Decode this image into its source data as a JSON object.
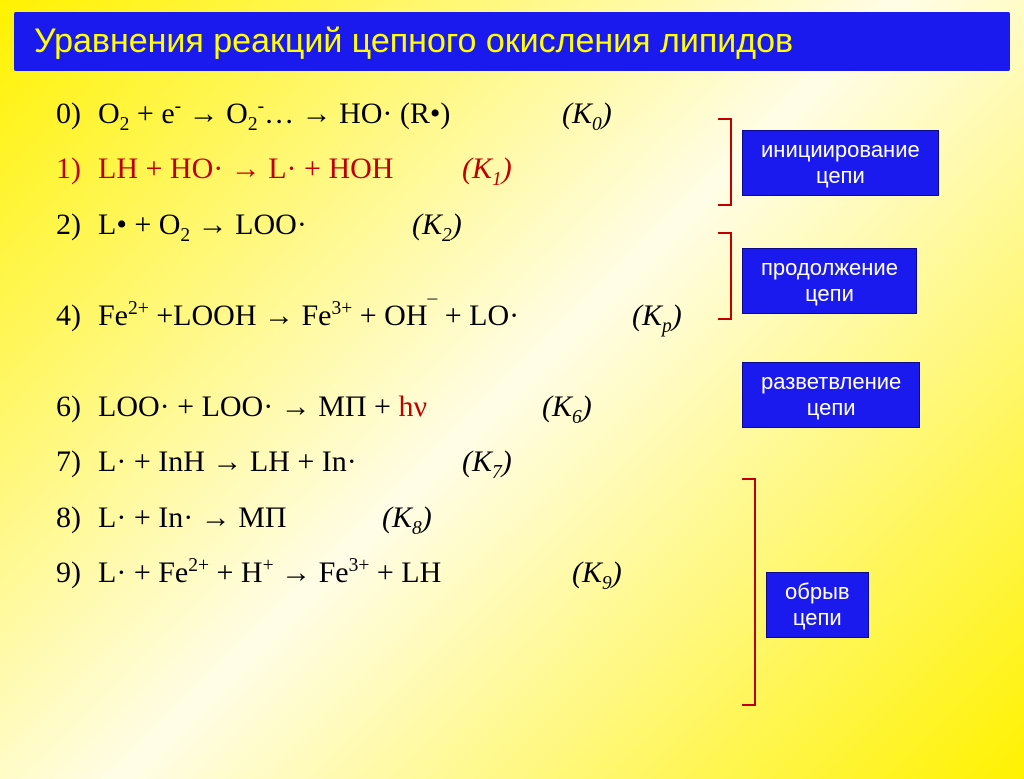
{
  "title": "Уравнения реакций цепного окисления липидов",
  "equations": {
    "eq0": {
      "num": "0)",
      "body_html": "O<span class='sub'>2</span> + e<span class='sup'>-</span> <span class='arrow'>→</span> O<span class='sub'>2</span><span class='sup'>-</span>… <span class='arrow'>→</span> HO·  (R•)",
      "k": "K",
      "ksub": "0"
    },
    "eq1": {
      "num": "1)",
      "body_html": "LH + HO· <span class='arrow'>→</span> L· + HOH",
      "k": "K",
      "ksub": "1"
    },
    "eq2": {
      "num": "2)",
      "body_html": "L• + O<span class='sub'>2</span> <span class='arrow'>→</span> LOO·",
      "k": "K",
      "ksub": "2"
    },
    "eq4": {
      "num": "4)",
      "body_html": "Fe<span class='sup'>2+</span> +LOOH <span class='arrow'>→</span> Fe<span class='sup'>3+</span> + OH<span class='sup'>¯</span> + LO·",
      "k": "K",
      "ksub": "р"
    },
    "eq6": {
      "num": "6)",
      "body_html": "LOO· + LOO· <span class='arrow'>→</span> МП + <span class='red'>hν</span>",
      "k": "K",
      "ksub": "6"
    },
    "eq7": {
      "num": "7)",
      "body_html": "L· + InH <span class='arrow'>→</span> LH + In·",
      "k": "K",
      "ksub": "7"
    },
    "eq8": {
      "num": "8)",
      "body_html": "L· + In· <span class='arrow'>→</span> МП",
      "k": "K",
      "ksub": "8"
    },
    "eq9": {
      "num": "9)",
      "body_html": "L· + Fe<span class='sup'>2+</span> + H<span class='sup'>+</span> <span class='arrow'>→</span> Fe<span class='sup'>3+</span> + LH",
      "k": "K",
      "ksub": "9"
    }
  },
  "labels": {
    "l1": "инициирование<br>цепи",
    "l2": "продолжение<br>цепи",
    "l3": "разветвление<br>цепи",
    "l4": "обрыв<br>цепи"
  },
  "style": {
    "title_bg": "#1a1aef",
    "title_color": "#ffff00",
    "label_bg": "#1a1aef",
    "label_color": "#ffffff",
    "red": "#c00000",
    "bracket_color": "#c00000",
    "page_bg_from": "#fff200",
    "page_bg_to": "#fffde7",
    "title_fontsize": 34,
    "eq_fontsize": 30,
    "label_fontsize": 22
  },
  "widths": {
    "eq0": 440,
    "eq1": 340,
    "eq2": 290,
    "eq4": 510,
    "eq6": 420,
    "eq7": 340,
    "eq8": 260,
    "eq9": 450
  }
}
